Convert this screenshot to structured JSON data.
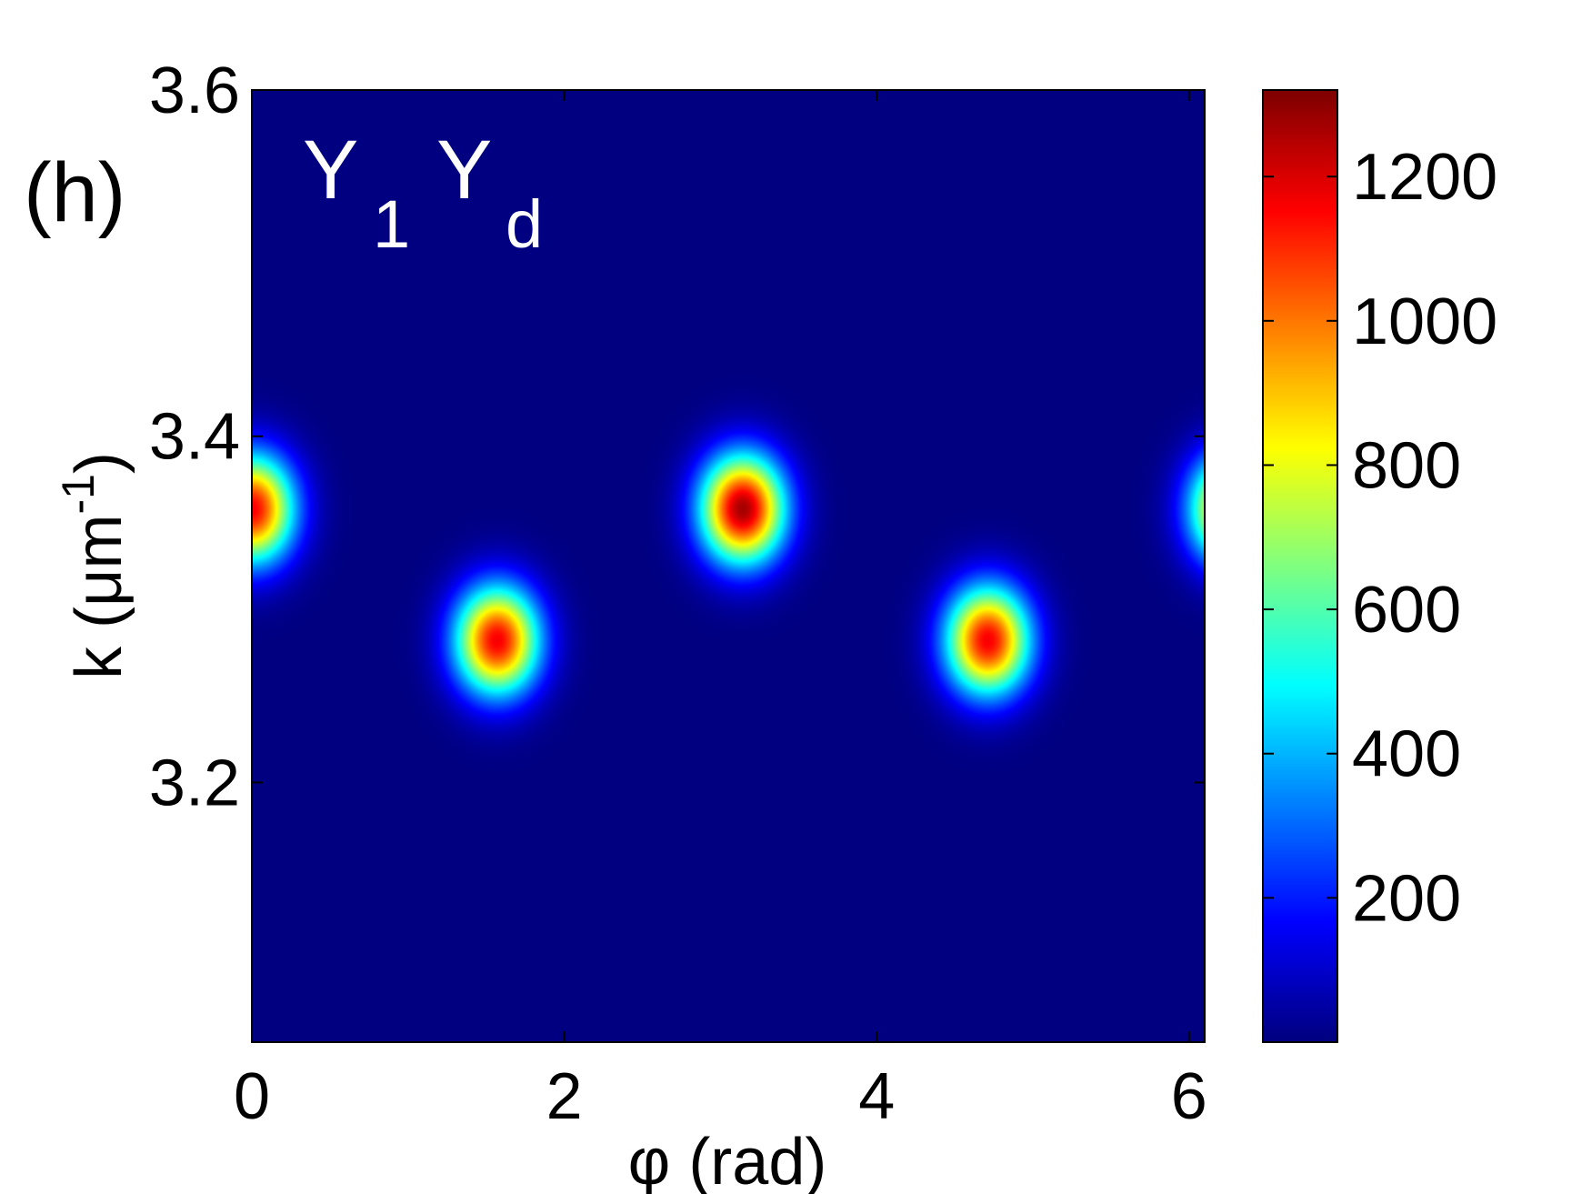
{
  "panel_label": "(h)",
  "annotation": {
    "main1": "Y",
    "sub1": "1",
    "main2": "Y",
    "sub2": "d"
  },
  "colors": {
    "background": "#00008f",
    "axis": "#000000",
    "annotation": "#ffffff",
    "colormap": "jet"
  },
  "chart_data": {
    "type": "heatmap",
    "title": "",
    "xlabel": "φ (rad)",
    "ylabel_main": "k (μm",
    "ylabel_sup": "-1",
    "ylabel_close": ")",
    "xlim": [
      0,
      6.1
    ],
    "ylim": [
      3.05,
      3.6
    ],
    "xticks": [
      0,
      2,
      4,
      6
    ],
    "xtick_labels": [
      "0",
      "2",
      "4",
      "6"
    ],
    "yticks": [
      3.2,
      3.4,
      3.6
    ],
    "ytick_labels": [
      "3.2",
      "3.4",
      "3.6"
    ],
    "grid": false,
    "colorbar": {
      "range": [
        0,
        1320
      ],
      "ticks": [
        200,
        400,
        600,
        800,
        1000,
        1200
      ],
      "tick_labels": [
        "200",
        "400",
        "600",
        "800",
        "1000",
        "1200"
      ]
    },
    "peaks": [
      {
        "phi": 0.0,
        "k": 3.358,
        "value": 1200
      },
      {
        "phi": 1.571,
        "k": 3.282,
        "value": 1200
      },
      {
        "phi": 3.142,
        "k": 3.358,
        "value": 1310
      },
      {
        "phi": 4.712,
        "k": 3.282,
        "value": 1200
      },
      {
        "phi": 6.283,
        "k": 3.358,
        "value": 1200
      }
    ]
  }
}
